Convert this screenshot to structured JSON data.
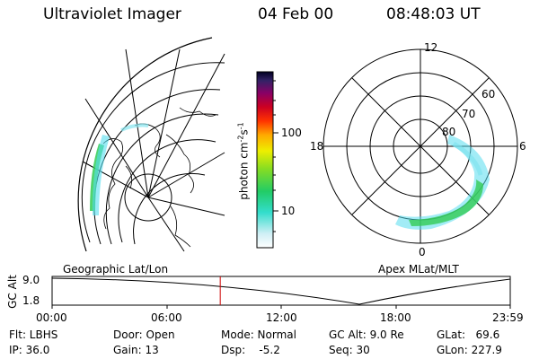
{
  "header": {
    "instrument": "Ultraviolet Imager",
    "date": "04 Feb 00",
    "time": "08:48:03 UT"
  },
  "colorbar": {
    "unit_label": "photon cm",
    "unit_exp1": "-2",
    "unit_mid": "s",
    "unit_exp2": "-1",
    "tick_100": "100",
    "tick_10": "10"
  },
  "geo_panel": {
    "label": "Geographic Lat/Lon"
  },
  "mlt_panel": {
    "label": "Apex MLat/MLT",
    "mlt_12": "12",
    "mlt_18": "18",
    "mlt_6": "6",
    "mlt_0": "0",
    "lat_60": "60",
    "lat_70": "70",
    "lat_80": "80"
  },
  "altitude_plot": {
    "axis_label": "GC Alt",
    "y_top": "9.0",
    "y_bottom": "1.8",
    "x_ticks": [
      "00:00",
      "06:00",
      "12:00",
      "18:00",
      "23:59"
    ],
    "current_time_fraction": 0.367
  },
  "status": {
    "flt": "Flt: LBHS",
    "ip": "IP: 36.0",
    "door": "Door: Open",
    "gain": "Gain: 13",
    "mode": "Mode: Normal",
    "dsp": "Dsp:    -5.2",
    "gc_alt": "GC Alt: 9.0 Re",
    "seq": "Seq: 30",
    "glat": "GLat:   69.6",
    "glon": "GLon: 227.9"
  },
  "colors": {
    "aurora_cyan": "#55ddee",
    "aurora_green": "#33cc55",
    "time_marker": "#cc0000"
  }
}
